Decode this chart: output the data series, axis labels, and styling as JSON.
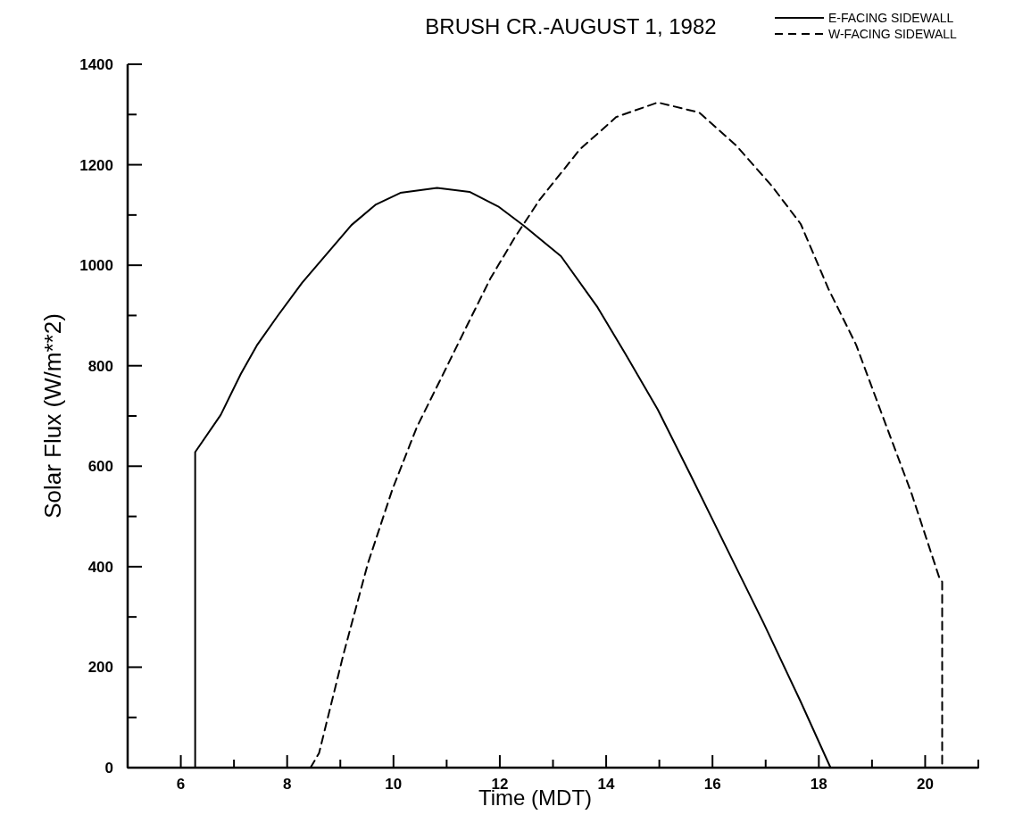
{
  "chart_data": {
    "type": "line",
    "title": "BRUSH CR.-AUGUST 1, 1982",
    "xlabel": "Time (MDT)",
    "ylabel": "Solar Flux (W/m**2)",
    "xlim": [
      5,
      21
    ],
    "ylim": [
      0,
      1400
    ],
    "xticks": [
      {
        "value": 5,
        "label": null
      },
      6,
      {
        "value": 7,
        "label": null
      },
      8,
      {
        "value": 9,
        "label": null
      },
      10,
      {
        "value": 11,
        "label": null
      },
      12,
      {
        "value": 13,
        "label": null
      },
      14,
      {
        "value": 15,
        "label": null
      },
      16,
      {
        "value": 17,
        "label": null
      },
      18,
      {
        "value": 19,
        "label": null
      },
      20,
      {
        "value": 21,
        "label": null
      }
    ],
    "yticks": [
      0,
      {
        "value": 100,
        "label": null
      },
      200,
      {
        "value": 300,
        "label": null
      },
      400,
      {
        "value": 500,
        "label": null
      },
      600,
      {
        "value": 700,
        "label": null
      },
      800,
      {
        "value": 900,
        "label": null
      },
      1000,
      {
        "value": 1100,
        "label": null
      },
      1200,
      {
        "value": 1300,
        "label": null
      },
      1400
    ],
    "legend": "top right",
    "grid": false,
    "series": [
      {
        "name": "E-FACING SIDEWALL",
        "color": "#000000",
        "line_style": "solid",
        "x": [
          5,
          6.27,
          6.27,
          6.75,
          7.13,
          7.44,
          7.82,
          8.28,
          8.75,
          9.21,
          9.67,
          10.13,
          10.82,
          11.43,
          11.97,
          12.46,
          13.15,
          13.84,
          14.36,
          14.97,
          15.58,
          16.27,
          16.96,
          17.66,
          18.22,
          21
        ],
        "values": [
          0,
          0,
          628,
          702,
          784,
          842,
          899,
          965,
          1023,
          1080,
          1121,
          1144,
          1154,
          1146,
          1117,
          1078,
          1018,
          916,
          824,
          713,
          584,
          436,
          288,
          131,
          0,
          0
        ]
      },
      {
        "name": "W-FACING SIDEWALL",
        "color": "#000000",
        "line_style": "dashed",
        "x": [
          8.44,
          8.6,
          9.06,
          9.52,
          9.98,
          10.44,
          10.9,
          11.36,
          11.82,
          12.28,
          12.74,
          13.2,
          13.5,
          14.19,
          14.97,
          15.75,
          16.44,
          17.13,
          17.66,
          18.18,
          18.7,
          19.22,
          19.74,
          20.26,
          20.32,
          20.32
        ],
        "values": [
          0,
          29,
          226,
          407,
          554,
          678,
          776,
          875,
          973,
          1055,
          1129,
          1190,
          1230,
          1295,
          1324,
          1304,
          1239,
          1156,
          1082,
          953,
          842,
          694,
          547,
          380,
          370,
          0
        ]
      }
    ]
  }
}
